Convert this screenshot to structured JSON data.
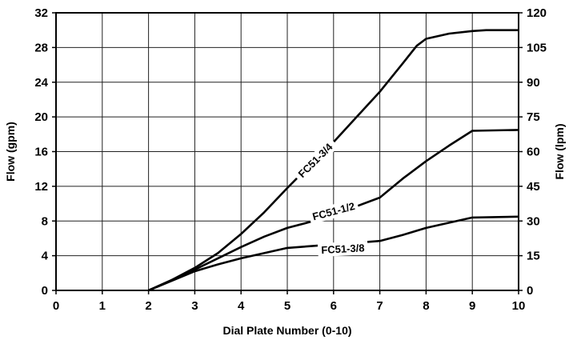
{
  "chart_data": {
    "type": "line",
    "xlabel": "Dial Plate Number (0-10)",
    "ylabel": "Flow (gpm)",
    "y2label": "Flow (lpm)",
    "xlim": [
      0,
      10
    ],
    "ylim": [
      0,
      32
    ],
    "y2lim": [
      0,
      120
    ],
    "x_ticks": [
      "0",
      "1",
      "2",
      "3",
      "4",
      "5",
      "6",
      "7",
      "8",
      "9",
      "10"
    ],
    "y_ticks": [
      "0",
      "4",
      "8",
      "12",
      "16",
      "20",
      "24",
      "28",
      "32"
    ],
    "y2_ticks": [
      "0",
      "15",
      "30",
      "45",
      "60",
      "75",
      "90",
      "105",
      "120"
    ],
    "grid": true,
    "series": [
      {
        "name": "FC51-3/4",
        "x": [
          2.0,
          2.5,
          3.0,
          3.5,
          4.0,
          4.5,
          5.0,
          5.5,
          6.0,
          6.5,
          7.0,
          7.5,
          7.8,
          8.0,
          8.5,
          9.0,
          9.3,
          10.0
        ],
        "y": [
          0.0,
          1.2,
          2.6,
          4.3,
          6.5,
          9.0,
          11.8,
          14.5,
          17.1,
          20.0,
          22.9,
          26.2,
          28.2,
          29.0,
          29.6,
          29.9,
          30.0,
          30.0
        ]
      },
      {
        "name": "FC51-1/2",
        "x": [
          2.0,
          2.5,
          3.0,
          3.5,
          4.0,
          4.5,
          5.0,
          5.5,
          6.0,
          6.5,
          7.0,
          7.5,
          8.0,
          8.5,
          9.0,
          10.0
        ],
        "y": [
          0.0,
          1.2,
          2.4,
          3.7,
          5.0,
          6.2,
          7.2,
          7.9,
          8.7,
          9.7,
          10.7,
          12.9,
          14.9,
          16.7,
          18.4,
          18.5
        ]
      },
      {
        "name": "FC51-3/8",
        "x": [
          2.0,
          2.5,
          3.0,
          3.5,
          4.0,
          4.5,
          5.0,
          5.5,
          6.0,
          6.5,
          7.0,
          7.5,
          8.0,
          8.5,
          9.0,
          10.0
        ],
        "y": [
          0.0,
          1.1,
          2.2,
          3.0,
          3.7,
          4.3,
          4.9,
          5.1,
          5.3,
          5.5,
          5.7,
          6.4,
          7.2,
          7.8,
          8.4,
          8.5
        ]
      }
    ],
    "annotations": [
      {
        "text": "FC51-3/4",
        "series": 0
      },
      {
        "text": "FC51-1/2",
        "series": 1
      },
      {
        "text": "FC51-3/8",
        "series": 2
      }
    ]
  }
}
